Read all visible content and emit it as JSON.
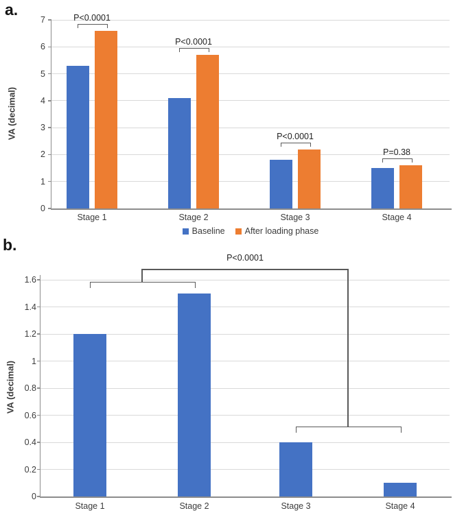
{
  "figure": {
    "panel_a_label": "a.",
    "panel_b_label": "b."
  },
  "colors": {
    "bar_blue": "#4472C4",
    "bar_orange": "#ED7D31",
    "gridline": "#D9D9D9",
    "axis_line": "#8C8C8C",
    "bracket": "#595959",
    "text": "#3B3B3B",
    "p_label": "#1F1F1F"
  },
  "chart_data": [
    {
      "id": "a",
      "type": "bar",
      "title": "",
      "ylabel": "VA (decimal)",
      "categories": [
        "Stage 1",
        "Stage 2",
        "Stage 3",
        "Stage 4"
      ],
      "series": [
        {
          "name": "Baseline",
          "color_key": "bar_blue",
          "values": [
            5.3,
            4.1,
            1.8,
            1.5
          ]
        },
        {
          "name": "After loading phase",
          "color_key": "bar_orange",
          "values": [
            6.6,
            5.7,
            2.2,
            1.6
          ]
        }
      ],
      "ylim": [
        0,
        7
      ],
      "yticks": [
        {
          "v": 0,
          "label": "0"
        },
        {
          "v": 1,
          "label": "1"
        },
        {
          "v": 2,
          "label": "2"
        },
        {
          "v": 3,
          "label": "3"
        },
        {
          "v": 4,
          "label": "4"
        },
        {
          "v": 5,
          "label": "5"
        },
        {
          "v": 6,
          "label": "6"
        },
        {
          "v": 7,
          "label": "7"
        }
      ],
      "grid": true,
      "legend_position": "bottom",
      "show_legend": true,
      "annotations": [
        {
          "label": "P<0.0001",
          "category_index": 0
        },
        {
          "label": "P<0.0001",
          "category_index": 1
        },
        {
          "label": "P<0.0001",
          "category_index": 2
        },
        {
          "label": "P=0.38",
          "category_index": 3
        }
      ]
    },
    {
      "id": "b",
      "type": "bar",
      "title": "",
      "ylabel": "VA (decimal)",
      "categories": [
        "Stage 1",
        "Stage 2",
        "Stage 3",
        "Stage 4"
      ],
      "series": [
        {
          "color_key": "bar_blue",
          "values": [
            1.2,
            1.5,
            0.4,
            0.1
          ]
        }
      ],
      "ylim": [
        0,
        1.6
      ],
      "yticks": [
        {
          "v": 0,
          "label": "0"
        },
        {
          "v": 0.2,
          "label": "0.2"
        },
        {
          "v": 0.4,
          "label": "0.4"
        },
        {
          "v": 0.6,
          "label": "0.6"
        },
        {
          "v": 0.8,
          "label": "0.8"
        },
        {
          "v": 1,
          "label": "1"
        },
        {
          "v": 1.2,
          "label": "1.2"
        },
        {
          "v": 1.4,
          "label": "1.4"
        },
        {
          "v": 1.6,
          "label": "1.6"
        }
      ],
      "grid": true,
      "show_legend": false,
      "group_annotation": {
        "label": "P<0.0001",
        "groups": [
          [
            0,
            1
          ],
          [
            2,
            3
          ]
        ]
      }
    }
  ]
}
